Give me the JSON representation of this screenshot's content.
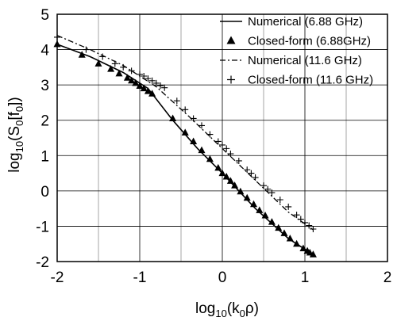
{
  "chart_data": {
    "type": "line",
    "xlabel": {
      "base": "log",
      "sub": "10",
      "rest": "(k",
      "sub2": "0",
      "end": "ρ)"
    },
    "ylabel": {
      "base": "log",
      "sub": "10",
      "rest": "(S",
      "sub2": "0",
      "mid": "[f",
      "sub3": "0",
      "end": "])"
    },
    "xlim": [
      -2,
      2
    ],
    "ylim": [
      -2,
      5
    ],
    "xticks": [
      "-2",
      "-1",
      "0",
      "1",
      "2"
    ],
    "yticks": [
      "-2",
      "-1",
      "0",
      "1",
      "2",
      "3",
      "4",
      "5"
    ],
    "grid": true,
    "legend_position": "top-right",
    "legend": [
      "Numerical (6.88 GHz)",
      "Closed-form (6.88GHz)",
      "Numerical (11.6 GHz)",
      "Closed-form (11.6 GHz)"
    ],
    "series": [
      {
        "name": "Numerical (6.88 GHz)",
        "style": "solid",
        "x": [
          -2.0,
          -1.6,
          -1.2,
          -0.9,
          -0.6,
          -0.3,
          0.0,
          0.4,
          0.8,
          1.1
        ],
        "y": [
          4.15,
          3.8,
          3.35,
          2.9,
          2.0,
          1.2,
          0.5,
          -0.5,
          -1.35,
          -1.8
        ]
      },
      {
        "name": "Closed-form (6.88GHz)",
        "style": "triangle",
        "x": [
          -2.0,
          -1.7,
          -1.5,
          -1.35,
          -1.25,
          -1.15,
          -1.1,
          -1.05,
          -1.0,
          -0.95,
          -0.9,
          -0.85,
          -0.6,
          -0.45,
          -0.35,
          -0.25,
          -0.15,
          -0.05,
          0.0,
          0.05,
          0.1,
          0.15,
          0.22,
          0.3,
          0.38,
          0.45,
          0.52,
          0.6,
          0.68,
          0.75,
          0.82,
          0.9,
          0.98,
          1.03,
          1.06,
          1.1
        ],
        "y": [
          4.15,
          3.85,
          3.6,
          3.45,
          3.32,
          3.2,
          3.12,
          3.05,
          2.97,
          2.9,
          2.82,
          2.75,
          2.05,
          1.65,
          1.4,
          1.15,
          0.9,
          0.65,
          0.5,
          0.4,
          0.28,
          0.15,
          -0.02,
          -0.2,
          -0.38,
          -0.55,
          -0.7,
          -0.88,
          -1.05,
          -1.2,
          -1.35,
          -1.5,
          -1.63,
          -1.7,
          -1.75,
          -1.8
        ]
      },
      {
        "name": "Numerical (11.6 GHz)",
        "style": "dashdot",
        "x": [
          -2.0,
          -1.6,
          -1.2,
          -0.8,
          -0.4,
          0.0,
          0.4,
          0.8,
          1.1
        ],
        "y": [
          4.4,
          4.0,
          3.55,
          2.95,
          2.1,
          1.2,
          0.3,
          -0.6,
          -1.1
        ]
      },
      {
        "name": "Closed-form (11.6 GHz)",
        "style": "plus",
        "x": [
          -2.0,
          -1.65,
          -1.45,
          -1.3,
          -1.2,
          -1.1,
          -1.0,
          -0.95,
          -0.9,
          -0.85,
          -0.8,
          -0.75,
          -0.7,
          -0.55,
          -0.45,
          -0.35,
          -0.25,
          -0.15,
          -0.05,
          0.0,
          0.05,
          0.1,
          0.2,
          0.3,
          0.35,
          0.4,
          0.5,
          0.55,
          0.6,
          0.7,
          0.8,
          0.9,
          0.95,
          1.0,
          1.05,
          1.1
        ],
        "y": [
          4.35,
          4.0,
          3.8,
          3.6,
          3.5,
          3.4,
          3.3,
          3.25,
          3.18,
          3.12,
          3.05,
          2.98,
          2.92,
          2.55,
          2.3,
          2.05,
          1.85,
          1.6,
          1.4,
          1.3,
          1.2,
          1.05,
          0.85,
          0.6,
          0.5,
          0.38,
          0.15,
          0.05,
          -0.05,
          -0.25,
          -0.45,
          -0.68,
          -0.8,
          -0.9,
          -0.98,
          -1.08
        ]
      }
    ]
  }
}
